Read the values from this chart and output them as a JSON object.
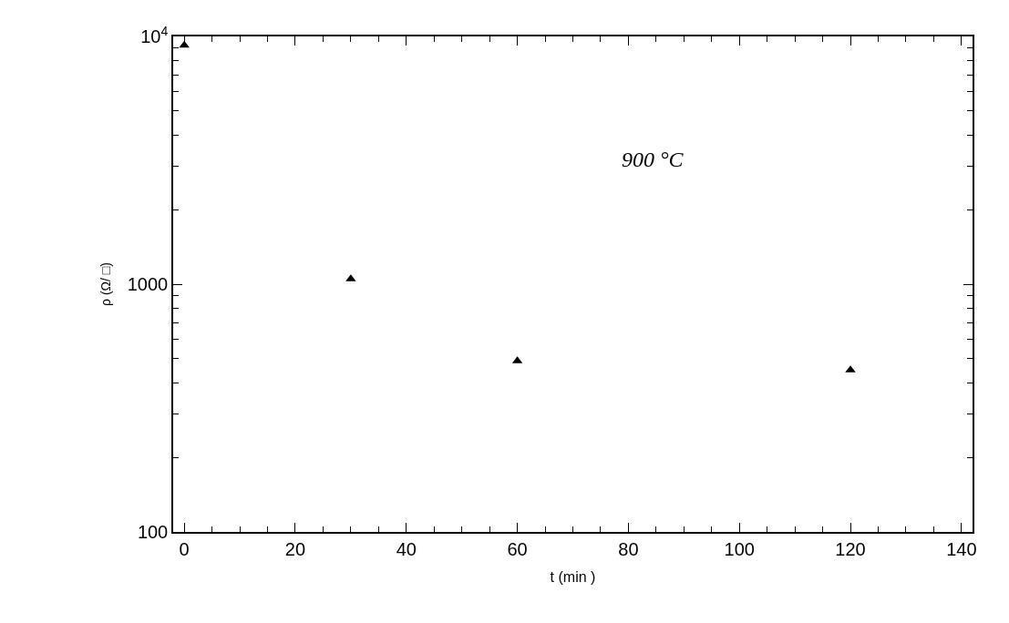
{
  "chart_data": {
    "type": "scatter",
    "xlabel": "t (min )",
    "ylabel": "ρ (Ω/ □)",
    "x": [
      0,
      30,
      60,
      120
    ],
    "series": [
      {
        "color": "#000000",
        "values": [
          9200,
          1050,
          490,
          450
        ]
      }
    ],
    "marker": "triangle",
    "log": "y",
    "xlim": [
      -2,
      142
    ],
    "xticks": [
      0,
      20,
      40,
      60,
      80,
      100,
      120,
      140
    ],
    "ylim": [
      100,
      10000
    ],
    "yticks": [
      100,
      1000,
      {
        "value": 10000,
        "label": "10$^{4}$"
      }
    ],
    "annotations": [
      "900 °C"
    ]
  }
}
